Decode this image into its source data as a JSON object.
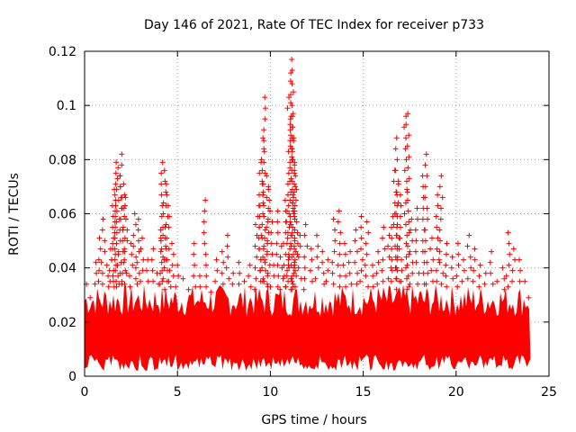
{
  "chart_data": {
    "type": "scatter",
    "title": "Day 146 of 2021, Rate Of TEC Index for receiver p733",
    "xlabel": "GPS time / hours",
    "ylabel": "ROTI / TECUs",
    "xlim": [
      0,
      25
    ],
    "ylim": [
      0,
      0.12
    ],
    "x_ticks": [
      0,
      5,
      10,
      15,
      20,
      25
    ],
    "y_ticks": [
      0,
      0.02,
      0.04,
      0.06,
      0.08,
      0.1,
      0.12
    ],
    "x_tick_labels": [
      "0",
      "5",
      "10",
      "15",
      "20",
      "25"
    ],
    "y_tick_labels": [
      "0",
      "0.02",
      "0.04",
      "0.06",
      "0.08",
      "0.1",
      "0.12"
    ],
    "grid": true,
    "marker": "+",
    "color": "#ff0000",
    "x_extent": [
      0,
      24
    ],
    "series": [
      {
        "points": [
          [
            0.1,
            0.034
          ],
          [
            0.3,
            0.029
          ],
          [
            0.6,
            0.042
          ],
          [
            0.8,
            0.051
          ],
          [
            1.0,
            0.058
          ],
          [
            1.2,
            0.041
          ],
          [
            1.4,
            0.047
          ],
          [
            1.5,
            0.063
          ],
          [
            1.6,
            0.069
          ],
          [
            1.7,
            0.079
          ],
          [
            1.8,
            0.077
          ],
          [
            1.9,
            0.074
          ],
          [
            2.0,
            0.082
          ],
          [
            2.1,
            0.071
          ],
          [
            2.2,
            0.066
          ],
          [
            2.5,
            0.049
          ],
          [
            2.7,
            0.06
          ],
          [
            2.9,
            0.058
          ],
          [
            3.1,
            0.051
          ],
          [
            3.4,
            0.043
          ],
          [
            3.7,
            0.047
          ],
          [
            3.9,
            0.038
          ],
          [
            4.1,
            0.054
          ],
          [
            4.2,
            0.079
          ],
          [
            4.3,
            0.076
          ],
          [
            4.4,
            0.071
          ],
          [
            4.5,
            0.063
          ],
          [
            4.7,
            0.049
          ],
          [
            5.0,
            0.041
          ],
          [
            5.3,
            0.036
          ],
          [
            5.6,
            0.032
          ],
          [
            5.9,
            0.049
          ],
          [
            6.2,
            0.037
          ],
          [
            6.5,
            0.065
          ],
          [
            6.8,
            0.031
          ],
          [
            7.1,
            0.043
          ],
          [
            7.4,
            0.046
          ],
          [
            7.7,
            0.052
          ],
          [
            8.0,
            0.038
          ],
          [
            8.3,
            0.042
          ],
          [
            8.6,
            0.035
          ],
          [
            8.9,
            0.041
          ],
          [
            9.2,
            0.056
          ],
          [
            9.4,
            0.067
          ],
          [
            9.5,
            0.079
          ],
          [
            9.6,
            0.088
          ],
          [
            9.7,
            0.103
          ],
          [
            9.8,
            0.074
          ],
          [
            9.9,
            0.069
          ],
          [
            10.1,
            0.057
          ],
          [
            10.4,
            0.061
          ],
          [
            10.6,
            0.048
          ],
          [
            10.8,
            0.065
          ],
          [
            10.9,
            0.061
          ],
          [
            11.0,
            0.103
          ],
          [
            11.1,
            0.112
          ],
          [
            11.15,
            0.117
          ],
          [
            11.2,
            0.096
          ],
          [
            11.25,
            0.087
          ],
          [
            11.3,
            0.078
          ],
          [
            11.4,
            0.069
          ],
          [
            11.6,
            0.052
          ],
          [
            11.9,
            0.056
          ],
          [
            12.2,
            0.047
          ],
          [
            12.5,
            0.052
          ],
          [
            12.8,
            0.046
          ],
          [
            13.1,
            0.043
          ],
          [
            13.4,
            0.058
          ],
          [
            13.7,
            0.061
          ],
          [
            14.0,
            0.049
          ],
          [
            14.3,
            0.046
          ],
          [
            14.6,
            0.054
          ],
          [
            14.9,
            0.059
          ],
          [
            15.2,
            0.057
          ],
          [
            15.5,
            0.041
          ],
          [
            15.8,
            0.046
          ],
          [
            16.1,
            0.055
          ],
          [
            16.4,
            0.052
          ],
          [
            16.6,
            0.059
          ],
          [
            16.7,
            0.076
          ],
          [
            16.8,
            0.088
          ],
          [
            16.9,
            0.071
          ],
          [
            17.0,
            0.067
          ],
          [
            17.3,
            0.096
          ],
          [
            17.4,
            0.097
          ],
          [
            17.6,
            0.058
          ],
          [
            17.9,
            0.062
          ],
          [
            18.2,
            0.074
          ],
          [
            18.4,
            0.082
          ],
          [
            18.7,
            0.051
          ],
          [
            19.0,
            0.067
          ],
          [
            19.2,
            0.074
          ],
          [
            19.5,
            0.049
          ],
          [
            19.8,
            0.044
          ],
          [
            20.1,
            0.049
          ],
          [
            20.4,
            0.043
          ],
          [
            20.7,
            0.052
          ],
          [
            21.0,
            0.047
          ],
          [
            21.3,
            0.041
          ],
          [
            21.6,
            0.038
          ],
          [
            21.9,
            0.046
          ],
          [
            22.2,
            0.035
          ],
          [
            22.5,
            0.04
          ],
          [
            22.8,
            0.053
          ],
          [
            23.1,
            0.047
          ],
          [
            23.4,
            0.043
          ],
          [
            23.7,
            0.035
          ],
          [
            23.9,
            0.029
          ]
        ]
      }
    ]
  }
}
